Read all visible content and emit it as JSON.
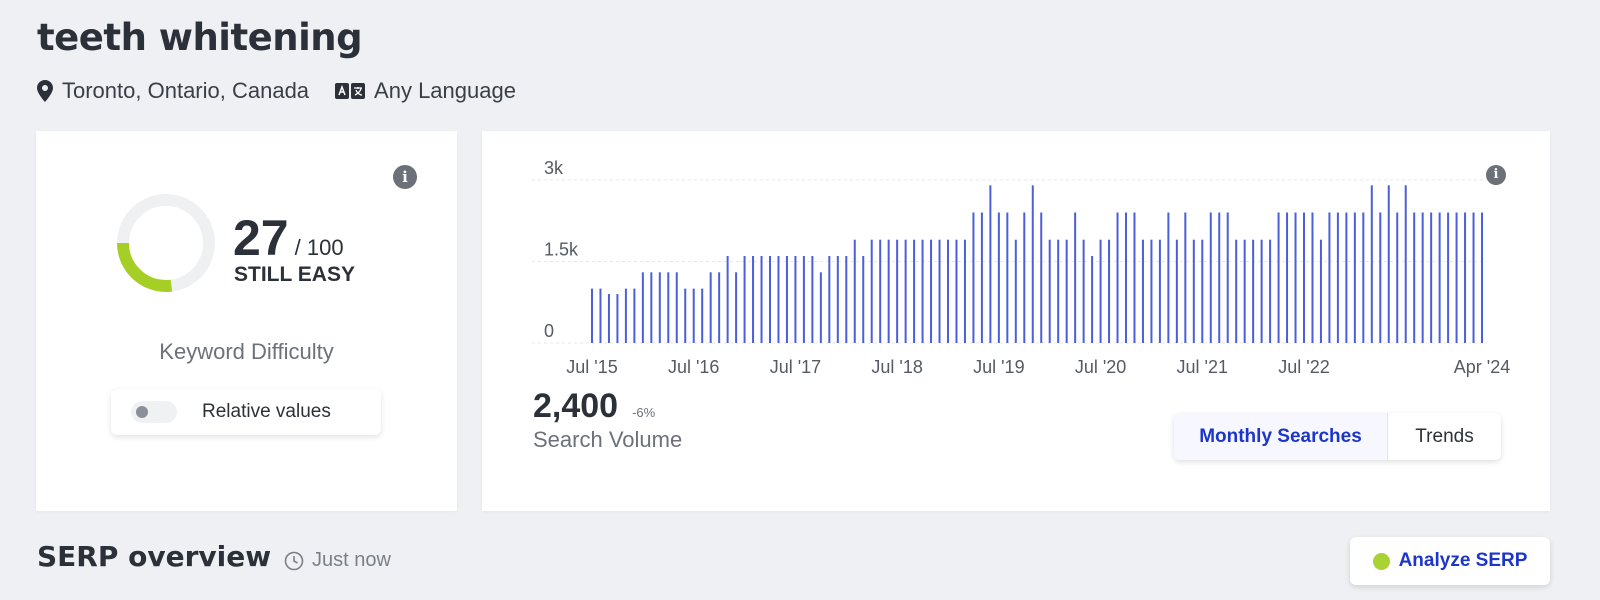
{
  "keyword": "teeth whitening",
  "location": {
    "icon": "map-pin-icon",
    "label": "Toronto, Ontario, Canada"
  },
  "language": {
    "icon": "language-icon",
    "label": "Any Language"
  },
  "difficulty": {
    "score": "27",
    "score_value": 27,
    "max": "/ 100",
    "rating": "STILL EASY",
    "title": "Keyword Difficulty",
    "relative_toggle_label": "Relative values",
    "relative_toggle_on": false,
    "colors": {
      "arc": "#a6cf25",
      "track": "#eff0f2"
    }
  },
  "volume": {
    "value": "2,400",
    "change": "-6%",
    "label": "Search Volume",
    "tabs": [
      {
        "label": "Monthly Searches",
        "active": true
      },
      {
        "label": "Trends",
        "active": false
      }
    ]
  },
  "chart_data": {
    "type": "bar",
    "title": "",
    "xlabel": "",
    "ylabel": "",
    "color": "#4a5fd9",
    "ylim": [
      0,
      3200
    ],
    "yticks": [
      {
        "value": 0,
        "label": "0"
      },
      {
        "value": 1500,
        "label": "1.5k"
      },
      {
        "value": 3000,
        "label": "3k"
      }
    ],
    "xtick_labels": [
      {
        "index": 0,
        "label": "Jul '15"
      },
      {
        "index": 12,
        "label": "Jul '16"
      },
      {
        "index": 24,
        "label": "Jul '17"
      },
      {
        "index": 36,
        "label": "Jul '18"
      },
      {
        "index": 48,
        "label": "Jul '19"
      },
      {
        "index": 60,
        "label": "Jul '20"
      },
      {
        "index": 72,
        "label": "Jul '21"
      },
      {
        "index": 84,
        "label": "Jul '22"
      },
      {
        "index": 105,
        "label": "Apr '24"
      }
    ],
    "series": [
      {
        "values": [
          1000,
          1000,
          900,
          900,
          1000,
          1000,
          1300,
          1300,
          1300,
          1300,
          1300,
          1000,
          1000,
          1000,
          1300,
          1300,
          1600,
          1300,
          1600,
          1600,
          1600,
          1600,
          1600,
          1600,
          1600,
          1600,
          1600,
          1300,
          1600,
          1600,
          1600,
          1900,
          1600,
          1900,
          1900,
          1900,
          1900,
          1900,
          1900,
          1900,
          1900,
          1900,
          1900,
          1900,
          1900,
          2400,
          2400,
          2900,
          2400,
          2400,
          1900,
          2400,
          2900,
          2400,
          1900,
          1900,
          1900,
          2400,
          1900,
          1600,
          1900,
          1900,
          2400,
          2400,
          2400,
          1900,
          1900,
          1900,
          2400,
          1900,
          2400,
          1900,
          1900,
          2400,
          2400,
          2400,
          1900,
          1900,
          1900,
          1900,
          1900,
          2400,
          2400,
          2400,
          2400,
          2400,
          1900,
          2400,
          2400,
          2400,
          2400,
          2400,
          2900,
          2400,
          2900,
          2400,
          2900,
          2400,
          2400,
          2400,
          2400,
          2400,
          2400,
          2400,
          2400,
          2400
        ]
      }
    ]
  },
  "serp": {
    "title": "SERP overview",
    "time_icon": "clock-icon",
    "time": "Just now",
    "analyze_label": "Analyze SERP",
    "analyze_dot_color": "#a9d233"
  }
}
